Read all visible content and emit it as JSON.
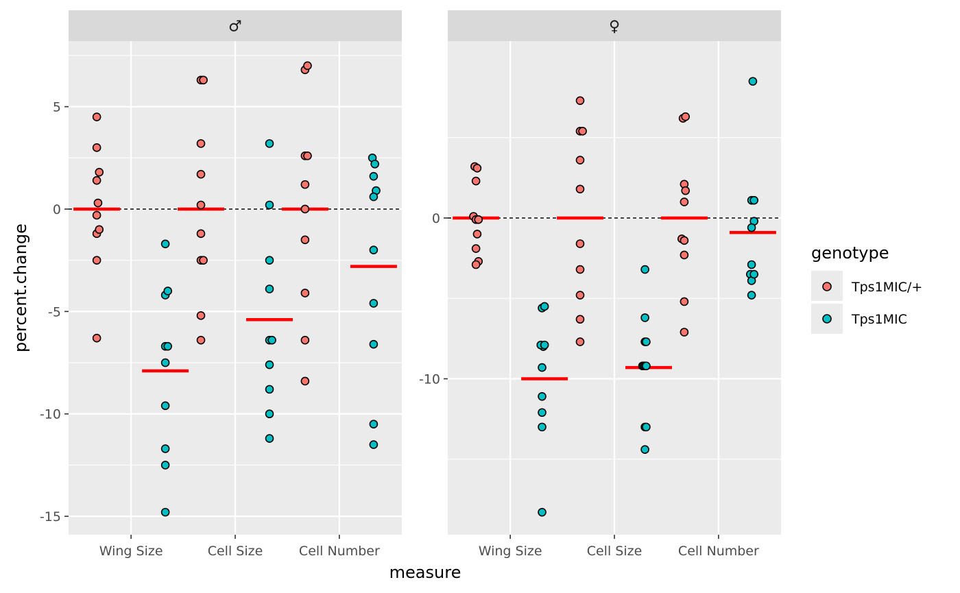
{
  "chart_data": {
    "type": "scatter",
    "xlabel": "measure",
    "ylabel": "percent.change",
    "categories": [
      "Wing Size",
      "Cell Size",
      "Cell Number"
    ],
    "legend": {
      "title": "genotype",
      "position": "right",
      "entries": [
        {
          "label": "Tps1MIC/+",
          "color": "#F8766D"
        },
        {
          "label": "Tps1MIC",
          "color": "#00BFC4"
        }
      ]
    },
    "reference_line": {
      "y": 0,
      "style": "dashed"
    },
    "mean_marker_color": "#FF0000",
    "panels": [
      {
        "strip": "♂",
        "ylim": [
          -15.9,
          8.2
        ],
        "yticks": [
          5,
          0,
          -5,
          -10,
          -15
        ],
        "ytick_labels": [
          "5",
          "0",
          "-5",
          "-10",
          "-15"
        ],
        "groups": [
          {
            "category": "Wing Size",
            "genotype": "Tps1MIC/+",
            "mean": 0.0,
            "points": [
              [
                -0.5,
                4.5
              ],
              [
                -0.5,
                3.0
              ],
              [
                -0.3,
                1.8
              ],
              [
                -0.5,
                1.4
              ],
              [
                -0.4,
                0.3
              ],
              [
                -0.5,
                -0.3
              ],
              [
                -0.5,
                -1.2
              ],
              [
                -0.3,
                -1.0
              ],
              [
                -0.5,
                -2.5
              ],
              [
                -0.5,
                -6.3
              ]
            ]
          },
          {
            "category": "Wing Size",
            "genotype": "Tps1MIC",
            "mean": -7.9,
            "points": [
              [
                0.5,
                -1.7
              ],
              [
                0.5,
                -4.2
              ],
              [
                0.7,
                -4.0
              ],
              [
                0.5,
                -6.7
              ],
              [
                0.7,
                -6.7
              ],
              [
                0.5,
                -7.5
              ],
              [
                0.5,
                -9.6
              ],
              [
                0.5,
                -11.7
              ],
              [
                0.5,
                -12.5
              ],
              [
                0.5,
                -14.8
              ]
            ]
          },
          {
            "category": "Cell Size",
            "genotype": "Tps1MIC/+",
            "mean": 0.0,
            "points": [
              [
                -0.5,
                6.3
              ],
              [
                -0.3,
                6.3
              ],
              [
                -0.5,
                3.2
              ],
              [
                -0.5,
                1.7
              ],
              [
                -0.5,
                0.2
              ],
              [
                -0.5,
                -1.2
              ],
              [
                -0.5,
                -2.5
              ],
              [
                -0.3,
                -2.5
              ],
              [
                -0.5,
                -5.2
              ],
              [
                -0.5,
                -6.4
              ]
            ]
          },
          {
            "category": "Cell Size",
            "genotype": "Tps1MIC",
            "mean": -5.4,
            "points": [
              [
                0.5,
                3.2
              ],
              [
                0.5,
                0.2
              ],
              [
                0.5,
                -2.5
              ],
              [
                0.5,
                -3.9
              ],
              [
                0.5,
                -6.4
              ],
              [
                0.7,
                -6.4
              ],
              [
                0.5,
                -7.6
              ],
              [
                0.5,
                -8.8
              ],
              [
                0.5,
                -10.0
              ],
              [
                0.5,
                -11.2
              ]
            ]
          },
          {
            "category": "Cell Number",
            "genotype": "Tps1MIC/+",
            "mean": 0.0,
            "points": [
              [
                -0.5,
                6.8
              ],
              [
                -0.3,
                7.0
              ],
              [
                -0.5,
                2.6
              ],
              [
                -0.3,
                2.6
              ],
              [
                -0.5,
                1.2
              ],
              [
                -0.5,
                0.0
              ],
              [
                -0.5,
                -1.5
              ],
              [
                -0.5,
                -4.1
              ],
              [
                -0.5,
                -6.4
              ],
              [
                -0.5,
                -8.4
              ]
            ]
          },
          {
            "category": "Cell Number",
            "genotype": "Tps1MIC",
            "mean": -2.8,
            "points": [
              [
                0.4,
                2.5
              ],
              [
                0.6,
                2.2
              ],
              [
                0.5,
                1.6
              ],
              [
                0.7,
                0.9
              ],
              [
                0.5,
                0.6
              ],
              [
                0.5,
                -2.0
              ],
              [
                0.5,
                -4.6
              ],
              [
                0.5,
                -6.6
              ],
              [
                0.5,
                -10.5
              ],
              [
                0.5,
                -11.5
              ]
            ]
          }
        ]
      },
      {
        "strip": "♀",
        "ylim": [
          -19.7,
          11.0
        ],
        "yticks": [
          0,
          -10
        ],
        "ytick_labels": [
          "0",
          "-10"
        ],
        "groups": [
          {
            "category": "Wing Size",
            "genotype": "Tps1MIC/+",
            "mean": 0.0,
            "points": [
              [
                -0.6,
                3.2
              ],
              [
                -0.4,
                3.1
              ],
              [
                -0.5,
                2.3
              ],
              [
                -0.7,
                0.1
              ],
              [
                -0.5,
                -0.1
              ],
              [
                -0.3,
                -0.1
              ],
              [
                -0.4,
                -1.0
              ],
              [
                -0.5,
                -1.9
              ],
              [
                -0.3,
                -2.7
              ],
              [
                -0.5,
                -2.9
              ]
            ]
          },
          {
            "category": "Wing Size",
            "genotype": "Tps1MIC",
            "mean": -10.0,
            "points": [
              [
                0.3,
                -5.6
              ],
              [
                0.5,
                -5.5
              ],
              [
                0.4,
                -8.0
              ],
              [
                0.2,
                -7.9
              ],
              [
                0.5,
                -7.9
              ],
              [
                0.3,
                -9.3
              ],
              [
                0.3,
                -11.1
              ],
              [
                0.3,
                -12.1
              ],
              [
                0.3,
                -13.0
              ],
              [
                0.3,
                -18.3
              ]
            ]
          },
          {
            "category": "Cell Size",
            "genotype": "Tps1MIC/+",
            "mean": 0.0,
            "points": [
              [
                -0.5,
                7.3
              ],
              [
                -0.5,
                5.4
              ],
              [
                -0.3,
                5.4
              ],
              [
                -0.5,
                3.6
              ],
              [
                -0.5,
                1.8
              ],
              [
                -0.5,
                -1.6
              ],
              [
                -0.5,
                -3.2
              ],
              [
                -0.5,
                -4.8
              ],
              [
                -0.5,
                -6.3
              ],
              [
                -0.5,
                -7.7
              ]
            ]
          },
          {
            "category": "Cell Size",
            "genotype": "Tps1MIC",
            "mean": -9.3,
            "points": [
              [
                0.2,
                -3.2
              ],
              [
                0.2,
                -6.2
              ],
              [
                0.2,
                -7.7
              ],
              [
                0.3,
                -7.7
              ],
              [
                0.0,
                -9.2
              ],
              [
                0.1,
                -9.2
              ],
              [
                0.2,
                -9.2
              ],
              [
                0.3,
                -9.2
              ],
              [
                0.2,
                -13.0
              ],
              [
                0.3,
                -13.0
              ],
              [
                0.2,
                -14.4
              ]
            ]
          },
          {
            "category": "Cell Number",
            "genotype": "Tps1MIC/+",
            "mean": 0.0,
            "points": [
              [
                -0.6,
                6.2
              ],
              [
                -0.4,
                6.3
              ],
              [
                -0.5,
                2.1
              ],
              [
                -0.4,
                1.7
              ],
              [
                -0.5,
                1.0
              ],
              [
                -0.7,
                -1.3
              ],
              [
                -0.5,
                -1.4
              ],
              [
                -0.5,
                -2.3
              ],
              [
                -0.5,
                -5.2
              ],
              [
                -0.5,
                -7.1
              ]
            ]
          },
          {
            "category": "Cell Number",
            "genotype": "Tps1MIC",
            "mean": -0.9,
            "points": [
              [
                0.5,
                8.5
              ],
              [
                0.4,
                1.1
              ],
              [
                0.6,
                1.1
              ],
              [
                0.6,
                -0.2
              ],
              [
                0.4,
                -0.6
              ],
              [
                0.4,
                -2.9
              ],
              [
                0.3,
                -3.5
              ],
              [
                0.4,
                -3.9
              ],
              [
                0.6,
                -3.5
              ],
              [
                0.4,
                -4.8
              ]
            ]
          }
        ]
      }
    ]
  }
}
